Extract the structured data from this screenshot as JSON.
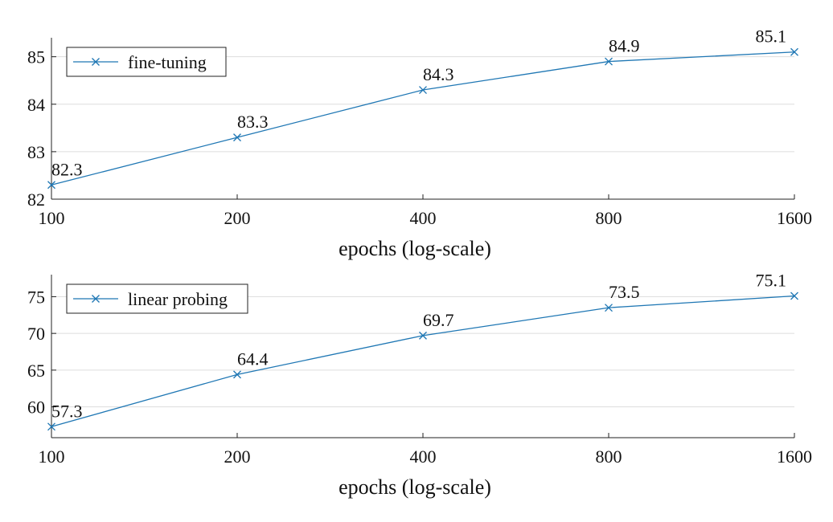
{
  "colors": {
    "series": "#1f77b4",
    "grid": "#dddddd",
    "axis": "#222222"
  },
  "chart_data": [
    {
      "type": "line",
      "x": [
        100,
        200,
        400,
        800,
        1600
      ],
      "x_tick_labels": [
        "100",
        "200",
        "400",
        "800",
        "1600"
      ],
      "x_scale": "log",
      "xlabel": "epochs (log-scale)",
      "ylabel": "",
      "ylim": [
        82,
        85.4
      ],
      "y_ticks": [
        82,
        83,
        84,
        85
      ],
      "y_tick_labels": [
        "82",
        "83",
        "84",
        "85"
      ],
      "grid": true,
      "legend_position": "top-left",
      "marker": "x",
      "series": [
        {
          "name": "fine-tuning",
          "values": [
            82.3,
            83.3,
            84.3,
            84.9,
            85.1
          ],
          "data_labels": [
            "82.3",
            "83.3",
            "84.3",
            "84.9",
            "85.1"
          ]
        }
      ]
    },
    {
      "type": "line",
      "x": [
        100,
        200,
        400,
        800,
        1600
      ],
      "x_tick_labels": [
        "100",
        "200",
        "400",
        "800",
        "1600"
      ],
      "x_scale": "log",
      "xlabel": "epochs (log-scale)",
      "ylabel": "",
      "ylim": [
        55.8,
        78
      ],
      "y_ticks": [
        60,
        65,
        70,
        75
      ],
      "y_tick_labels": [
        "60",
        "65",
        "70",
        "75"
      ],
      "grid": true,
      "legend_position": "top-left",
      "marker": "x",
      "series": [
        {
          "name": "linear probing",
          "values": [
            57.3,
            64.4,
            69.7,
            73.5,
            75.1
          ],
          "data_labels": [
            "57.3",
            "64.4",
            "69.7",
            "73.5",
            "75.1"
          ]
        }
      ]
    }
  ]
}
